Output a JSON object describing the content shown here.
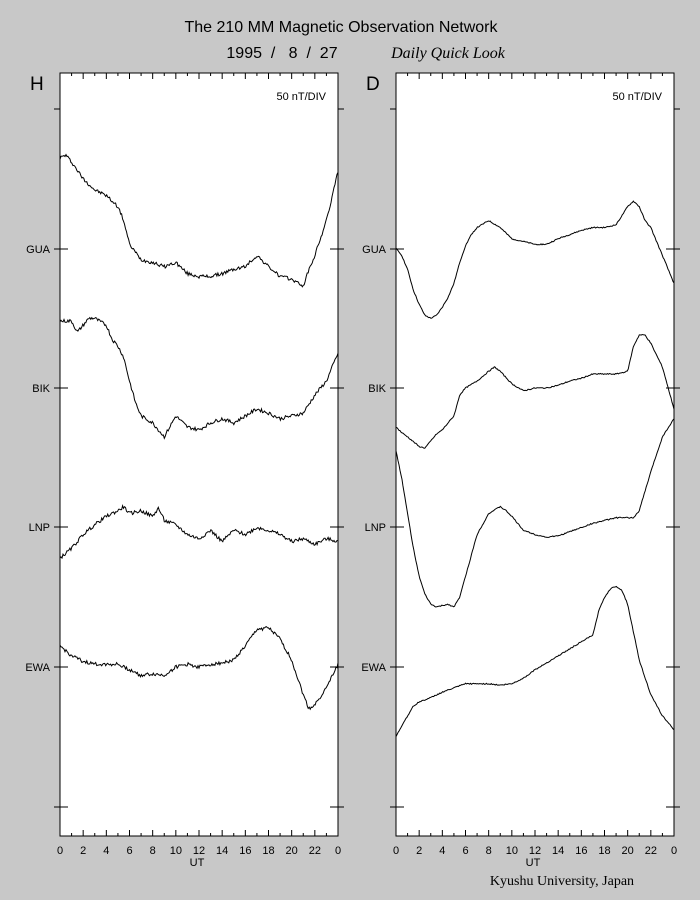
{
  "header": {
    "title": "The 210 MM Magnetic Observation Network",
    "date": "1995  /   8  /  27",
    "subtitle": "Daily Quick Look"
  },
  "footer": {
    "credit": "Kyushu University, Japan"
  },
  "chart_data": [
    {
      "type": "line",
      "panel_label": "H",
      "scale_label": "50 nT/DIV",
      "xlabel": "UT",
      "xlim": [
        0,
        24
      ],
      "x_ticks": [
        "0",
        "2",
        "4",
        "6",
        "8",
        "10",
        "12",
        "14",
        "16",
        "18",
        "20",
        "22",
        "0"
      ],
      "x_tick_values": [
        0,
        2,
        4,
        6,
        8,
        10,
        12,
        14,
        16,
        18,
        20,
        22,
        24
      ],
      "ylim": [
        -5,
        0.5
      ],
      "station_ticks": [
        {
          "label": "GUA",
          "value": -1
        },
        {
          "label": "BIK",
          "value": -2
        },
        {
          "label": "LNP",
          "value": -3
        },
        {
          "label": "EWA",
          "value": -4
        },
        {
          "label": "",
          "value": -5
        }
      ],
      "series": [
        {
          "name": "GUA",
          "baseline": -1,
          "x": [
            0,
            0.5,
            1,
            2,
            3,
            4,
            5,
            5.5,
            6,
            7,
            8,
            9,
            10,
            11,
            12,
            13,
            14,
            15,
            16,
            17,
            18,
            19,
            20,
            21,
            21.5,
            22,
            23,
            24
          ],
          "y": [
            -0.35,
            -0.33,
            -0.38,
            -0.5,
            -0.58,
            -0.62,
            -0.7,
            -0.8,
            -0.97,
            -1.08,
            -1.1,
            -1.13,
            -1.1,
            -1.18,
            -1.2,
            -1.2,
            -1.18,
            -1.15,
            -1.13,
            -1.05,
            -1.13,
            -1.2,
            -1.22,
            -1.27,
            -1.15,
            -1.05,
            -0.8,
            -0.45
          ]
        },
        {
          "name": "BIK",
          "baseline": -2,
          "x": [
            0,
            1,
            1.5,
            2,
            2.5,
            3,
            4,
            4.5,
            5,
            5.5,
            6,
            6.5,
            7,
            8,
            9,
            10,
            11,
            12,
            13,
            14,
            15,
            16,
            17,
            18,
            19,
            20,
            21,
            22,
            23,
            24
          ],
          "y": [
            -1.52,
            -1.52,
            -1.6,
            -1.55,
            -1.5,
            -1.5,
            -1.55,
            -1.65,
            -1.7,
            -1.78,
            -1.95,
            -2.1,
            -2.2,
            -2.25,
            -2.35,
            -2.2,
            -2.28,
            -2.3,
            -2.25,
            -2.22,
            -2.25,
            -2.2,
            -2.15,
            -2.18,
            -2.22,
            -2.2,
            -2.18,
            -2.05,
            -1.95,
            -1.75
          ]
        },
        {
          "name": "LNP",
          "baseline": -3,
          "x": [
            0,
            1,
            2,
            3,
            4,
            5,
            5.5,
            6,
            7,
            8,
            8.5,
            9,
            10,
            11,
            12,
            13,
            14,
            15,
            16,
            17,
            18,
            19,
            20,
            21,
            22,
            23,
            24
          ],
          "y": [
            -3.22,
            -3.15,
            -3.05,
            -2.98,
            -2.92,
            -2.88,
            -2.85,
            -2.9,
            -2.88,
            -2.92,
            -2.86,
            -2.95,
            -2.98,
            -3.05,
            -3.08,
            -3.02,
            -3.1,
            -3.02,
            -3.05,
            -3.0,
            -3.02,
            -3.05,
            -3.1,
            -3.08,
            -3.12,
            -3.08,
            -3.1
          ]
        },
        {
          "name": "EWA",
          "baseline": -4,
          "x": [
            0,
            1,
            2,
            3,
            4,
            5,
            6,
            7,
            8,
            9,
            10,
            11,
            12,
            13,
            14,
            15,
            16,
            17,
            18,
            19,
            20,
            21,
            21.5,
            22,
            23,
            24
          ],
          "y": [
            -3.85,
            -3.92,
            -3.96,
            -3.98,
            -3.98,
            -3.98,
            -4.02,
            -4.06,
            -4.05,
            -4.06,
            -4.0,
            -3.98,
            -4.0,
            -3.98,
            -3.97,
            -3.95,
            -3.85,
            -3.73,
            -3.72,
            -3.8,
            -3.95,
            -4.2,
            -4.3,
            -4.27,
            -4.15,
            -3.98
          ]
        }
      ]
    },
    {
      "type": "line",
      "panel_label": "D",
      "scale_label": "50 nT/DIV",
      "xlabel": "UT",
      "xlim": [
        0,
        24
      ],
      "x_ticks": [
        "0",
        "2",
        "4",
        "6",
        "8",
        "10",
        "12",
        "14",
        "16",
        "18",
        "20",
        "22",
        "0"
      ],
      "x_tick_values": [
        0,
        2,
        4,
        6,
        8,
        10,
        12,
        14,
        16,
        18,
        20,
        22,
        24
      ],
      "ylim": [
        -5,
        0.5
      ],
      "station_ticks": [
        {
          "label": "GUA",
          "value": -1
        },
        {
          "label": "BIK",
          "value": -2
        },
        {
          "label": "LNP",
          "value": -3
        },
        {
          "label": "EWA",
          "value": -4
        },
        {
          "label": "",
          "value": -5
        }
      ],
      "series": [
        {
          "name": "GUA",
          "baseline": -1,
          "x": [
            0,
            0.5,
            1,
            1.5,
            2,
            2.5,
            3,
            3.5,
            4,
            4.5,
            5,
            5.5,
            6,
            6.5,
            7,
            8,
            9,
            10,
            11,
            12,
            13,
            14,
            15,
            16,
            17,
            18,
            19,
            20,
            20.5,
            21,
            21.5,
            22,
            23,
            24
          ],
          "y": [
            -1.0,
            -1.05,
            -1.15,
            -1.3,
            -1.4,
            -1.48,
            -1.5,
            -1.48,
            -1.42,
            -1.35,
            -1.25,
            -1.1,
            -0.98,
            -0.9,
            -0.85,
            -0.8,
            -0.85,
            -0.93,
            -0.95,
            -0.97,
            -0.97,
            -0.93,
            -0.9,
            -0.87,
            -0.85,
            -0.85,
            -0.83,
            -0.7,
            -0.66,
            -0.7,
            -0.8,
            -0.85,
            -1.05,
            -1.25
          ]
        },
        {
          "name": "BIK",
          "baseline": -2,
          "x": [
            0,
            0.5,
            1,
            2,
            2.5,
            3,
            3.5,
            4,
            5,
            5.5,
            6,
            7,
            8,
            8.5,
            9,
            10,
            11,
            12,
            13,
            14,
            15,
            16,
            17,
            18,
            19,
            20,
            20.5,
            21,
            21.5,
            22,
            23,
            24
          ],
          "y": [
            -2.28,
            -2.32,
            -2.35,
            -2.42,
            -2.43,
            -2.38,
            -2.33,
            -2.3,
            -2.2,
            -2.05,
            -2.0,
            -1.95,
            -1.88,
            -1.85,
            -1.88,
            -1.97,
            -2.02,
            -2.0,
            -2.0,
            -1.98,
            -1.95,
            -1.93,
            -1.9,
            -1.9,
            -1.9,
            -1.88,
            -1.7,
            -1.62,
            -1.62,
            -1.68,
            -1.85,
            -2.15
          ]
        },
        {
          "name": "LNP",
          "baseline": -3,
          "x": [
            0,
            0.5,
            1,
            1.5,
            2,
            2.5,
            3,
            3.5,
            4,
            4.5,
            5,
            5.5,
            6,
            6.5,
            7,
            8,
            9,
            9.5,
            10,
            11,
            12,
            13,
            14,
            15,
            16,
            17,
            18,
            19,
            20,
            20.5,
            21,
            22,
            23,
            24
          ],
          "y": [
            -2.45,
            -2.65,
            -2.9,
            -3.15,
            -3.35,
            -3.48,
            -3.55,
            -3.57,
            -3.56,
            -3.55,
            -3.57,
            -3.5,
            -3.35,
            -3.2,
            -3.05,
            -2.9,
            -2.85,
            -2.88,
            -2.92,
            -3.02,
            -3.05,
            -3.07,
            -3.06,
            -3.03,
            -3.0,
            -2.97,
            -2.95,
            -2.93,
            -2.93,
            -2.93,
            -2.88,
            -2.6,
            -2.35,
            -2.22
          ]
        },
        {
          "name": "EWA",
          "baseline": -4,
          "x": [
            0,
            0.5,
            1,
            1.5,
            2,
            3,
            4,
            5,
            6,
            7,
            8,
            9,
            10,
            11,
            12,
            13,
            14,
            15,
            16,
            17,
            17.5,
            18,
            18.5,
            19,
            19.5,
            20,
            20.5,
            21,
            22,
            23,
            24
          ],
          "y": [
            -4.5,
            -4.42,
            -4.35,
            -4.28,
            -4.25,
            -4.22,
            -4.18,
            -4.15,
            -4.12,
            -4.12,
            -4.12,
            -4.13,
            -4.12,
            -4.08,
            -4.02,
            -3.97,
            -3.92,
            -3.87,
            -3.82,
            -3.77,
            -3.6,
            -3.5,
            -3.44,
            -3.42,
            -3.45,
            -3.55,
            -3.75,
            -3.95,
            -4.2,
            -4.35,
            -4.45
          ]
        }
      ]
    }
  ]
}
